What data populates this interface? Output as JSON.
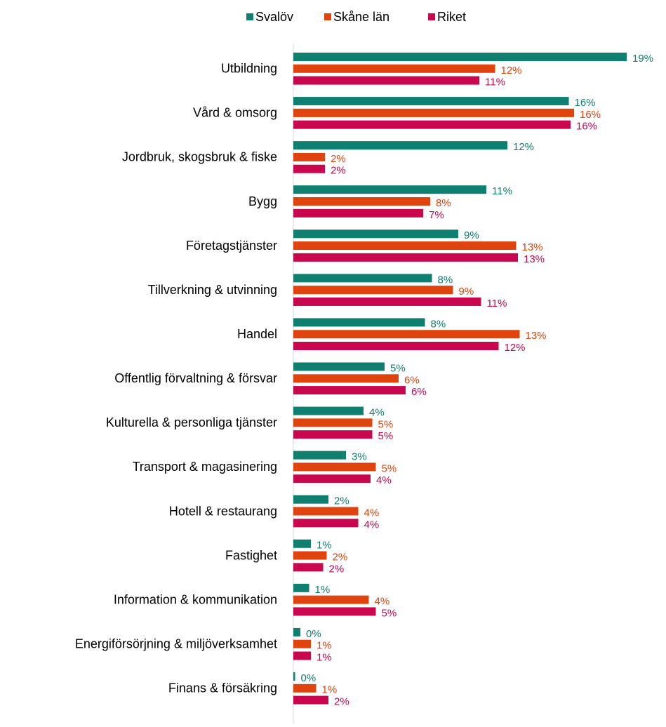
{
  "chart_data": {
    "type": "hbar",
    "categories": [
      "Utbildning",
      "Vård & omsorg",
      "Jordbruk, skogsbruk & fiske",
      "Bygg",
      "Företagstjänster",
      "Tillverkning & utvinning",
      "Handel",
      "Offentlig förvaltning & försvar",
      "Kulturella & personliga tjänster",
      "Transport & magasinering",
      "Hotell & restaurang",
      "Fastighet",
      "Information & kommunikation",
      "Energiförsörjning & miljöverksamhet",
      "Finans & försäkring"
    ],
    "series": [
      {
        "name": "Svalöv",
        "color": "#0f7f6f",
        "values": [
          19.0,
          15.7,
          12.2,
          11.0,
          9.4,
          7.9,
          7.5,
          5.2,
          4.0,
          3.0,
          2.0,
          1.0,
          0.9,
          0.4,
          0.1
        ],
        "value_labels": [
          "19%",
          "16%",
          "12%",
          "11%",
          "9%",
          "8%",
          "8%",
          "5%",
          "4%",
          "3%",
          "2%",
          "1%",
          "1%",
          "0%",
          "0%"
        ]
      },
      {
        "name": "Skåne län",
        "color": "#e0440e",
        "values": [
          11.5,
          16.0,
          1.8,
          7.8,
          12.7,
          9.1,
          12.9,
          6.0,
          4.5,
          4.7,
          3.7,
          1.9,
          4.3,
          1.0,
          1.3
        ],
        "value_labels": [
          "12%",
          "16%",
          "2%",
          "8%",
          "13%",
          "9%",
          "13%",
          "6%",
          "5%",
          "5%",
          "4%",
          "2%",
          "4%",
          "1%",
          "1%"
        ]
      },
      {
        "name": "Riket",
        "color": "#c8074e",
        "values": [
          10.6,
          15.8,
          1.8,
          7.4,
          12.8,
          10.7,
          11.7,
          6.4,
          4.5,
          4.4,
          3.7,
          1.7,
          4.7,
          1.0,
          2.0
        ],
        "value_labels": [
          "11%",
          "16%",
          "2%",
          "7%",
          "13%",
          "11%",
          "12%",
          "6%",
          "5%",
          "4%",
          "4%",
          "2%",
          "5%",
          "1%",
          "2%"
        ]
      }
    ],
    "xlim": [
      0,
      20
    ]
  }
}
